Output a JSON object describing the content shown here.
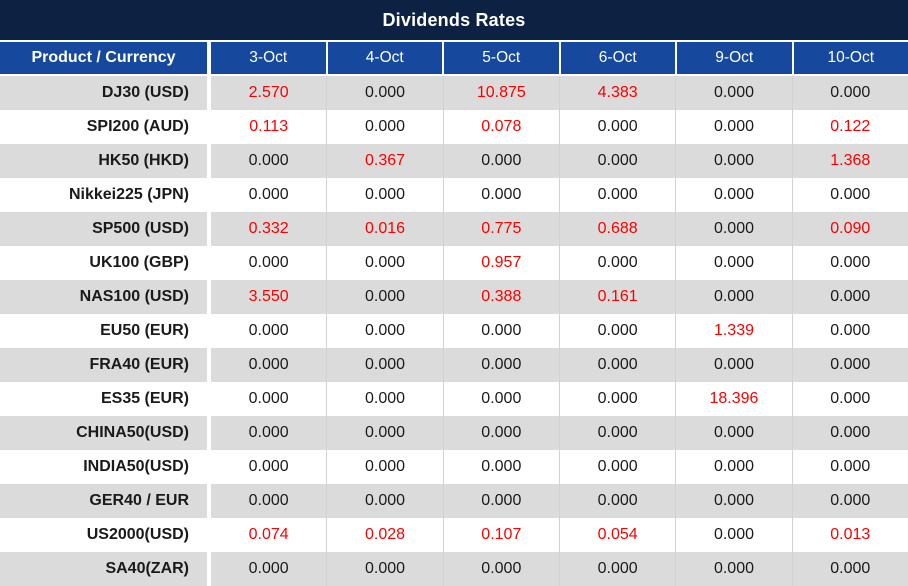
{
  "title": "Dividends Rates",
  "colors": {
    "title_bg": "#0d2242",
    "header_bg": "#16489e",
    "row_alt_bg": "#dbdbdb",
    "row_bg": "#ffffff",
    "highlight": "#fb0000",
    "text": "#1a1a1a",
    "header_text": "#ffffff",
    "grid_line": "#d2d2d2"
  },
  "chart_data": {
    "type": "table",
    "title": "Dividends Rates",
    "row_header": "Product / Currency",
    "columns": [
      "3-Oct",
      "4-Oct",
      "5-Oct",
      "6-Oct",
      "9-Oct",
      "10-Oct"
    ],
    "rows": [
      {
        "product": "DJ30 (USD)",
        "values": [
          "2.570",
          "0.000",
          "10.875",
          "4.383",
          "0.000",
          "0.000"
        ],
        "highlighted": [
          true,
          false,
          true,
          true,
          false,
          false
        ]
      },
      {
        "product": "SPI200 (AUD)",
        "values": [
          "0.113",
          "0.000",
          "0.078",
          "0.000",
          "0.000",
          "0.122"
        ],
        "highlighted": [
          true,
          false,
          true,
          false,
          false,
          true
        ]
      },
      {
        "product": "HK50 (HKD)",
        "values": [
          "0.000",
          "0.367",
          "0.000",
          "0.000",
          "0.000",
          "1.368"
        ],
        "highlighted": [
          false,
          true,
          false,
          false,
          false,
          true
        ]
      },
      {
        "product": "Nikkei225 (JPN)",
        "values": [
          "0.000",
          "0.000",
          "0.000",
          "0.000",
          "0.000",
          "0.000"
        ],
        "highlighted": [
          false,
          false,
          false,
          false,
          false,
          false
        ]
      },
      {
        "product": "SP500 (USD)",
        "values": [
          "0.332",
          "0.016",
          "0.775",
          "0.688",
          "0.000",
          "0.090"
        ],
        "highlighted": [
          true,
          true,
          true,
          true,
          false,
          true
        ]
      },
      {
        "product": "UK100 (GBP)",
        "values": [
          "0.000",
          "0.000",
          "0.957",
          "0.000",
          "0.000",
          "0.000"
        ],
        "highlighted": [
          false,
          false,
          true,
          false,
          false,
          false
        ]
      },
      {
        "product": "NAS100 (USD)",
        "values": [
          "3.550",
          "0.000",
          "0.388",
          "0.161",
          "0.000",
          "0.000"
        ],
        "highlighted": [
          true,
          false,
          true,
          true,
          false,
          false
        ]
      },
      {
        "product": "EU50 (EUR)",
        "values": [
          "0.000",
          "0.000",
          "0.000",
          "0.000",
          "1.339",
          "0.000"
        ],
        "highlighted": [
          false,
          false,
          false,
          false,
          true,
          false
        ]
      },
      {
        "product": "FRA40 (EUR)",
        "values": [
          "0.000",
          "0.000",
          "0.000",
          "0.000",
          "0.000",
          "0.000"
        ],
        "highlighted": [
          false,
          false,
          false,
          false,
          false,
          false
        ]
      },
      {
        "product": "ES35 (EUR)",
        "values": [
          "0.000",
          "0.000",
          "0.000",
          "0.000",
          "18.396",
          "0.000"
        ],
        "highlighted": [
          false,
          false,
          false,
          false,
          true,
          false
        ]
      },
      {
        "product": "CHINA50(USD)",
        "values": [
          "0.000",
          "0.000",
          "0.000",
          "0.000",
          "0.000",
          "0.000"
        ],
        "highlighted": [
          false,
          false,
          false,
          false,
          false,
          false
        ]
      },
      {
        "product": "INDIA50(USD)",
        "values": [
          "0.000",
          "0.000",
          "0.000",
          "0.000",
          "0.000",
          "0.000"
        ],
        "highlighted": [
          false,
          false,
          false,
          false,
          false,
          false
        ]
      },
      {
        "product": "GER40 / EUR",
        "values": [
          "0.000",
          "0.000",
          "0.000",
          "0.000",
          "0.000",
          "0.000"
        ],
        "highlighted": [
          false,
          false,
          false,
          false,
          false,
          false
        ]
      },
      {
        "product": "US2000(USD)",
        "values": [
          "0.074",
          "0.028",
          "0.107",
          "0.054",
          "0.000",
          "0.013"
        ],
        "highlighted": [
          true,
          true,
          true,
          true,
          false,
          true
        ]
      },
      {
        "product": "SA40(ZAR)",
        "values": [
          "0.000",
          "0.000",
          "0.000",
          "0.000",
          "0.000",
          "0.000"
        ],
        "highlighted": [
          false,
          false,
          false,
          false,
          false,
          false
        ]
      }
    ]
  }
}
